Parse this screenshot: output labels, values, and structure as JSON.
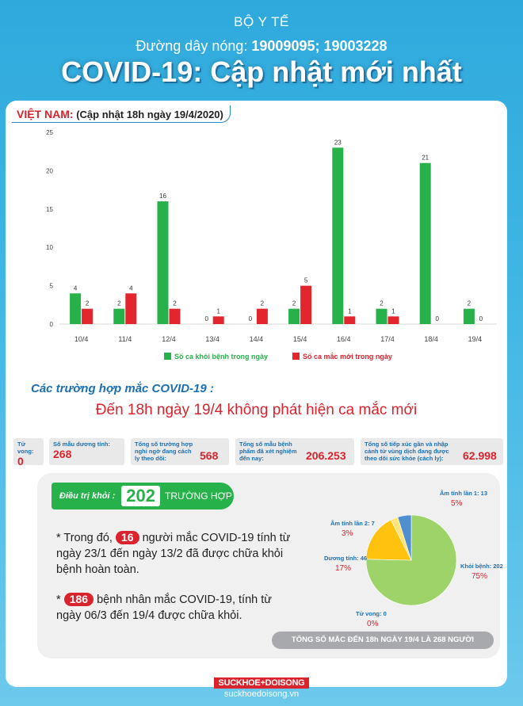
{
  "header": {
    "ministry": "BỘ Y TẾ",
    "hotline_label": "Đường dây nóng:",
    "hotline_numbers": "19009095; 19003228",
    "title": "COVID-19: Cập nhật mới nhất"
  },
  "country": {
    "name": "VIỆT NAM:",
    "update": "(Cập nhật 18h ngày 19/4/2020)"
  },
  "chart_data": [
    {
      "type": "bar",
      "categories": [
        "10/4",
        "11/4",
        "12/4",
        "13/4",
        "14/4",
        "15/4",
        "16/4",
        "17/4",
        "18/4",
        "19/4"
      ],
      "ylim": [
        0,
        25
      ],
      "yticks": [
        0,
        5,
        10,
        15,
        20,
        25
      ],
      "grid": false,
      "legend_position": "bottom",
      "series": [
        {
          "name": "Số ca khỏi bệnh trong ngày",
          "color": "#27b14a",
          "values": [
            4,
            2,
            16,
            0,
            0,
            2,
            23,
            2,
            21,
            2
          ]
        },
        {
          "name": "Số ca mắc mới  trong ngày",
          "color": "#e3262d",
          "values": [
            2,
            4,
            2,
            1,
            2,
            5,
            1,
            1,
            0,
            0
          ]
        }
      ]
    },
    {
      "type": "pie",
      "slices": [
        {
          "label": "Khỏi bệnh: 202",
          "pct": "75%",
          "value": 202,
          "color": "#9ed36a"
        },
        {
          "label": "Dương tính: 46",
          "pct": "17%",
          "value": 46,
          "color": "#ffc20e"
        },
        {
          "label": "Âm tính lần 2: 7",
          "pct": "3%",
          "value": 7,
          "color": "#ffe57a"
        },
        {
          "label": "Âm tính lần 1: 13",
          "pct": "5%",
          "value": 13,
          "color": "#4f8fcf"
        },
        {
          "label": "Tử vong: 0",
          "pct": "0%",
          "value": 0,
          "color": "#d9232d"
        }
      ]
    }
  ],
  "cases": {
    "section_title": "Các trường hợp mắc COVID-19 :",
    "headline": "Đến 18h ngày 19/4 không phát hiện ca mắc mới"
  },
  "stats": [
    {
      "label": "Tử vong:",
      "value": "0"
    },
    {
      "label": "Số mẫu dương tính:",
      "value": "268"
    },
    {
      "label": "Tổng số trường hợp nghi ngờ đang cách ly theo dõi:",
      "value": "568"
    },
    {
      "label": "Tổng số mẫu bệnh phẩm đã xét nghiệm đến nay:",
      "value": "206.253"
    },
    {
      "label": "Tổng số tiếp xúc gần và nhập cảnh từ vùng dịch đang được theo dõi sức khỏe (cách ly):",
      "value": "62.998"
    }
  ],
  "treatment": {
    "label": "Điều trị khỏi :",
    "number": "202",
    "unit": "TRƯỜNG HỢP",
    "note1_prefix": "* Trong đó,",
    "note1_num": "16",
    "note1_text": "người mắc COVID-19 tính từ ngày 23/1 đến ngày 13/2 đã được chữa khỏi bệnh hoàn toàn.",
    "note2_prefix": "*",
    "note2_num": "186",
    "note2_text": "bệnh nhân  mắc COVID-19, tính từ ngày 06/3 đến 19/4 được chữa khỏi."
  },
  "total": "TỔNG SỐ MẮC ĐẾN 18h NGÀY 19/4 LÀ 268 NGƯỜI",
  "brand": {
    "logo": "SUCKHOE+DOISONG",
    "url": "suckhoedoisong.vn"
  }
}
